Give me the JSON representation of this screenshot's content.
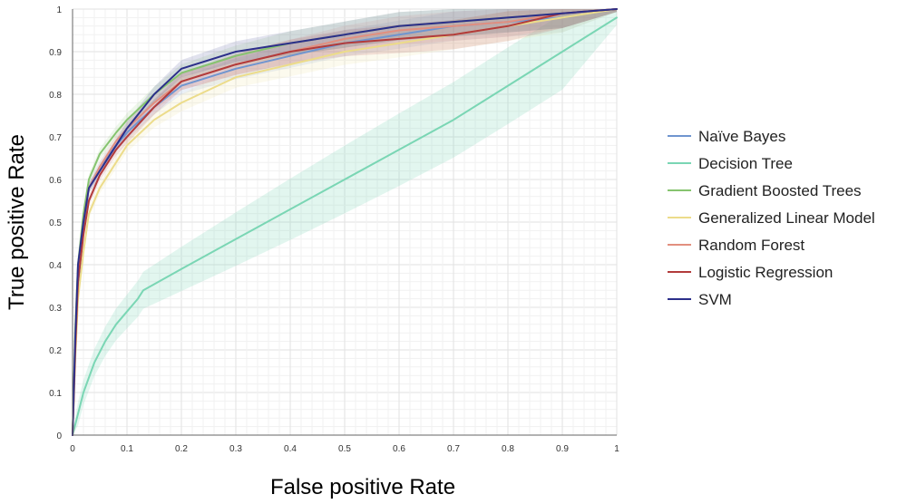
{
  "chart_data": {
    "type": "line",
    "title": "",
    "xlabel": "False positive Rate",
    "ylabel": "True positive Rate",
    "xlim": [
      0,
      1
    ],
    "ylim": [
      0,
      1
    ],
    "x_ticks": [
      "0",
      "0.1",
      "0.2",
      "0.3",
      "0.4",
      "0.5",
      "0.6",
      "0.7",
      "0.8",
      "0.9",
      "1"
    ],
    "y_ticks": [
      "0",
      "0.1",
      "0.2",
      "0.3",
      "0.4",
      "0.5",
      "0.6",
      "0.7",
      "0.8",
      "0.9",
      "1"
    ],
    "grid": true,
    "legend_position": "right",
    "series": [
      {
        "name": "Naïve Bayes",
        "color": "#6f95cf",
        "x": [
          0,
          0.005,
          0.01,
          0.02,
          0.03,
          0.05,
          0.08,
          0.1,
          0.15,
          0.2,
          0.3,
          0.4,
          0.5,
          0.6,
          0.7,
          0.8,
          0.9,
          1.0
        ],
        "y": [
          0,
          0.2,
          0.35,
          0.48,
          0.58,
          0.63,
          0.68,
          0.71,
          0.77,
          0.82,
          0.86,
          0.89,
          0.92,
          0.94,
          0.96,
          0.97,
          0.98,
          1.0
        ]
      },
      {
        "name": "Decision Tree",
        "color": "#7ad6b4",
        "x": [
          0,
          0.01,
          0.02,
          0.04,
          0.06,
          0.08,
          0.1,
          0.12,
          0.13,
          0.2,
          0.3,
          0.4,
          0.5,
          0.6,
          0.7,
          0.8,
          0.9,
          1.0
        ],
        "y": [
          0,
          0.05,
          0.1,
          0.17,
          0.22,
          0.26,
          0.29,
          0.32,
          0.34,
          0.39,
          0.46,
          0.53,
          0.6,
          0.67,
          0.74,
          0.82,
          0.9,
          0.98
        ]
      },
      {
        "name": "Gradient Boosted Trees",
        "color": "#86c46f",
        "x": [
          0,
          0.005,
          0.01,
          0.02,
          0.03,
          0.05,
          0.08,
          0.1,
          0.15,
          0.2,
          0.3,
          0.4,
          0.5,
          0.6,
          0.7,
          0.8,
          0.9,
          1.0
        ],
        "y": [
          0,
          0.25,
          0.4,
          0.52,
          0.6,
          0.66,
          0.71,
          0.74,
          0.8,
          0.85,
          0.89,
          0.92,
          0.94,
          0.96,
          0.97,
          0.98,
          0.99,
          1.0
        ]
      },
      {
        "name": "Generalized Linear Model",
        "color": "#ecdc8a",
        "x": [
          0,
          0.005,
          0.01,
          0.02,
          0.03,
          0.05,
          0.08,
          0.1,
          0.15,
          0.2,
          0.3,
          0.4,
          0.5,
          0.6,
          0.7,
          0.8,
          0.9,
          1.0
        ],
        "y": [
          0,
          0.18,
          0.32,
          0.43,
          0.52,
          0.58,
          0.64,
          0.68,
          0.74,
          0.78,
          0.84,
          0.87,
          0.9,
          0.92,
          0.94,
          0.96,
          0.98,
          1.0
        ]
      },
      {
        "name": "Random Forest",
        "color": "#e28f7f",
        "x": [
          0,
          0.005,
          0.01,
          0.02,
          0.03,
          0.05,
          0.08,
          0.1,
          0.15,
          0.2,
          0.3,
          0.4,
          0.5,
          0.6,
          0.7,
          0.8,
          0.9,
          1.0
        ],
        "y": [
          0,
          0.22,
          0.38,
          0.5,
          0.58,
          0.63,
          0.69,
          0.72,
          0.78,
          0.83,
          0.87,
          0.9,
          0.93,
          0.95,
          0.96,
          0.97,
          0.99,
          1.0
        ]
      },
      {
        "name": "Logistic Regression",
        "color": "#b23b3b",
        "x": [
          0,
          0.005,
          0.01,
          0.02,
          0.03,
          0.05,
          0.08,
          0.1,
          0.15,
          0.2,
          0.3,
          0.4,
          0.5,
          0.6,
          0.7,
          0.8,
          0.9,
          1.0
        ],
        "y": [
          0,
          0.2,
          0.36,
          0.47,
          0.55,
          0.61,
          0.67,
          0.7,
          0.77,
          0.83,
          0.87,
          0.9,
          0.92,
          0.93,
          0.94,
          0.96,
          0.99,
          1.0
        ]
      },
      {
        "name": "SVM",
        "color": "#2c2f8a",
        "x": [
          0,
          0.005,
          0.01,
          0.02,
          0.03,
          0.05,
          0.08,
          0.1,
          0.15,
          0.2,
          0.3,
          0.4,
          0.5,
          0.6,
          0.7,
          0.8,
          0.9,
          1.0
        ],
        "y": [
          0,
          0.23,
          0.4,
          0.5,
          0.58,
          0.62,
          0.68,
          0.72,
          0.8,
          0.86,
          0.9,
          0.92,
          0.94,
          0.96,
          0.97,
          0.98,
          0.99,
          1.0
        ]
      }
    ]
  }
}
